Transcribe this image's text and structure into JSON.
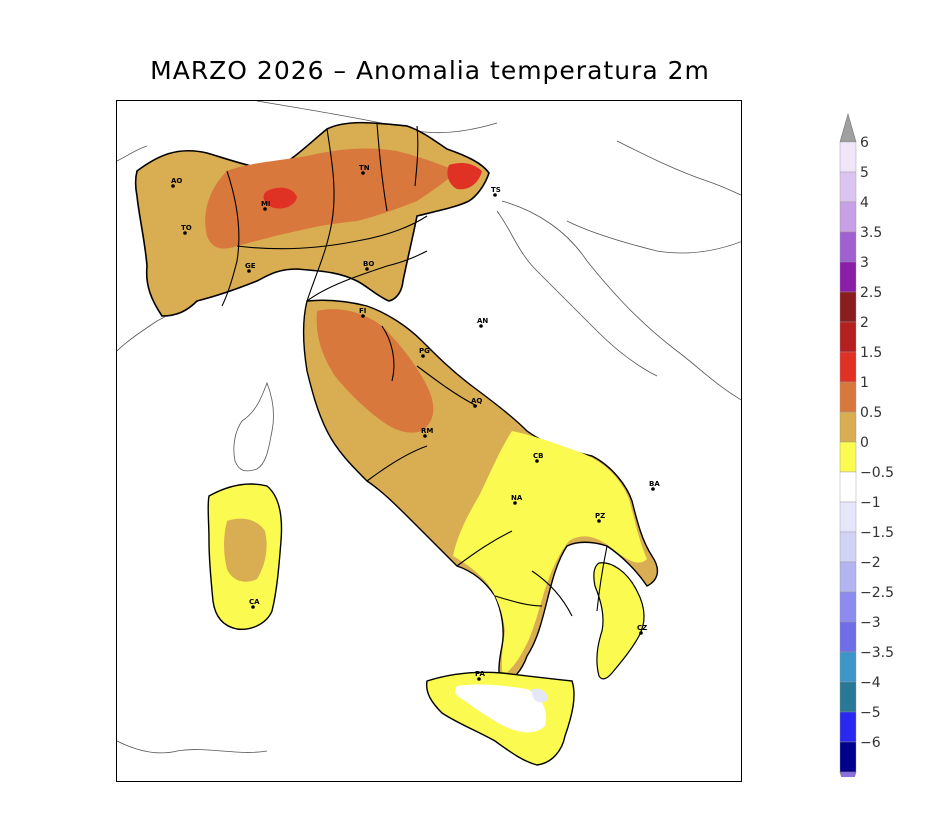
{
  "title": "MARZO 2026 – Anomalia temperatura 2m",
  "colorbar": {
    "over_color": "#a0a0a0",
    "under_color": "#8e6fe0",
    "levels": [
      {
        "label": "6",
        "color": "#f0e6fa"
      },
      {
        "label": "5",
        "color": "#dcc4f0"
      },
      {
        "label": "4",
        "color": "#c8a0e6"
      },
      {
        "label": "3.5",
        "color": "#a060d0"
      },
      {
        "label": "3",
        "color": "#8a1ea8"
      },
      {
        "label": "2.5",
        "color": "#8a1e1e"
      },
      {
        "label": "2",
        "color": "#b42020"
      },
      {
        "label": "1.5",
        "color": "#e03224"
      },
      {
        "label": "1",
        "color": "#d9783c"
      },
      {
        "label": "0.5",
        "color": "#d9ad52"
      },
      {
        "label": "0",
        "color": "#fafa50"
      },
      {
        "label": "−0.5",
        "color": "#ffffff"
      },
      {
        "label": "−1",
        "color": "#e6e6fa"
      },
      {
        "label": "−1.5",
        "color": "#d2d2f5"
      },
      {
        "label": "−2",
        "color": "#b4b4f0"
      },
      {
        "label": "−2.5",
        "color": "#8c8cf0"
      },
      {
        "label": "−3",
        "color": "#6e6ee6"
      },
      {
        "label": "−3.5",
        "color": "#3c96c8"
      },
      {
        "label": "−4",
        "color": "#287896"
      },
      {
        "label": "−5",
        "color": "#2828f0"
      },
      {
        "label": "−6",
        "color": "#00008c"
      }
    ]
  },
  "cities": [
    {
      "code": "AO"
    },
    {
      "code": "TO"
    },
    {
      "code": "MI"
    },
    {
      "code": "TN"
    },
    {
      "code": "TS"
    },
    {
      "code": "GE"
    },
    {
      "code": "BO"
    },
    {
      "code": "FI"
    },
    {
      "code": "AN"
    },
    {
      "code": "PG"
    },
    {
      "code": "AQ"
    },
    {
      "code": "RM"
    },
    {
      "code": "CB"
    },
    {
      "code": "NA"
    },
    {
      "code": "BA"
    },
    {
      "code": "PZ"
    },
    {
      "code": "CZ"
    },
    {
      "code": "PA"
    },
    {
      "code": "CA"
    }
  ]
}
